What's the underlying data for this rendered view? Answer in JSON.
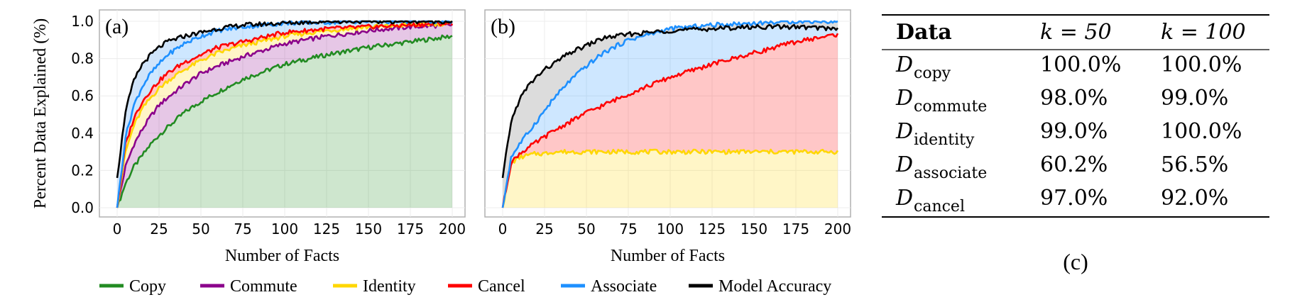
{
  "chart_data": [
    {
      "id": "a",
      "type": "line",
      "panel_label": "(a)",
      "xlabel": "Number of Facts",
      "ylabel": "Percent Data Explained (%)",
      "xlim": [
        0,
        200
      ],
      "ylim": [
        0,
        1.0
      ],
      "xticks": [
        "0",
        "25",
        "50",
        "75",
        "100",
        "125",
        "150",
        "175",
        "200"
      ],
      "yticks": [
        "0.0",
        "0.2",
        "0.4",
        "0.6",
        "0.8",
        "1.0"
      ],
      "grid": true,
      "fill_between_series": true,
      "x": [
        0,
        5,
        10,
        15,
        20,
        25,
        30,
        40,
        50,
        60,
        75,
        100,
        125,
        150,
        175,
        200
      ],
      "series": [
        {
          "name": "Copy",
          "color": "#228B22",
          "values": [
            0.0,
            0.13,
            0.22,
            0.28,
            0.34,
            0.39,
            0.43,
            0.51,
            0.57,
            0.62,
            0.69,
            0.77,
            0.82,
            0.86,
            0.89,
            0.92
          ]
        },
        {
          "name": "Commute",
          "color": "#8B008B",
          "values": [
            0.0,
            0.22,
            0.34,
            0.42,
            0.49,
            0.55,
            0.59,
            0.66,
            0.72,
            0.76,
            0.81,
            0.88,
            0.92,
            0.95,
            0.97,
            0.98
          ]
        },
        {
          "name": "Identity",
          "color": "#FFD700",
          "values": [
            0.0,
            0.3,
            0.44,
            0.53,
            0.59,
            0.64,
            0.68,
            0.74,
            0.79,
            0.83,
            0.87,
            0.92,
            0.95,
            0.97,
            0.98,
            0.99
          ]
        },
        {
          "name": "Cancel",
          "color": "#FF0000",
          "values": [
            0.0,
            0.34,
            0.48,
            0.57,
            0.63,
            0.68,
            0.72,
            0.78,
            0.82,
            0.86,
            0.89,
            0.94,
            0.96,
            0.97,
            0.98,
            0.99
          ]
        },
        {
          "name": "Associate",
          "color": "#1E90FF",
          "values": [
            0.0,
            0.38,
            0.55,
            0.65,
            0.72,
            0.77,
            0.82,
            0.88,
            0.92,
            0.95,
            0.97,
            0.99,
            0.995,
            1.0,
            1.0,
            1.0
          ]
        },
        {
          "name": "Model Accuracy",
          "color": "#000000",
          "values": [
            0.16,
            0.52,
            0.68,
            0.77,
            0.82,
            0.86,
            0.89,
            0.92,
            0.94,
            0.96,
            0.98,
            0.99,
            1.0,
            1.0,
            1.0,
            1.0
          ]
        }
      ]
    },
    {
      "id": "b",
      "type": "line",
      "panel_label": "(b)",
      "xlabel": "Number of Facts",
      "ylabel": "",
      "xlim": [
        0,
        200
      ],
      "ylim": [
        0,
        1.0
      ],
      "xticks": [
        "0",
        "25",
        "50",
        "75",
        "100",
        "125",
        "150",
        "175",
        "200"
      ],
      "grid": true,
      "fill_between_series": true,
      "x": [
        0,
        5,
        10,
        15,
        20,
        25,
        30,
        40,
        50,
        60,
        75,
        100,
        125,
        150,
        175,
        200
      ],
      "series": [
        {
          "name": "Identity",
          "color": "#FFD700",
          "values": [
            0.0,
            0.24,
            0.27,
            0.28,
            0.29,
            0.29,
            0.3,
            0.3,
            0.3,
            0.3,
            0.3,
            0.3,
            0.3,
            0.3,
            0.3,
            0.3
          ]
        },
        {
          "name": "Cancel",
          "color": "#FF0000",
          "values": [
            0.0,
            0.24,
            0.29,
            0.32,
            0.35,
            0.38,
            0.41,
            0.46,
            0.51,
            0.55,
            0.61,
            0.7,
            0.77,
            0.83,
            0.89,
            0.93
          ]
        },
        {
          "name": "Associate",
          "color": "#1E90FF",
          "values": [
            0.0,
            0.27,
            0.34,
            0.4,
            0.46,
            0.52,
            0.58,
            0.68,
            0.76,
            0.83,
            0.9,
            0.96,
            0.98,
            0.99,
            1.0,
            1.0
          ]
        },
        {
          "name": "Model Accuracy",
          "color": "#000000",
          "values": [
            0.16,
            0.46,
            0.58,
            0.65,
            0.7,
            0.74,
            0.77,
            0.83,
            0.87,
            0.91,
            0.93,
            0.95,
            0.96,
            0.97,
            0.97,
            0.96
          ]
        }
      ]
    },
    {
      "id": "c",
      "type": "table",
      "caption": "(c)",
      "columns": [
        "Data",
        "k = 50",
        "k = 100"
      ],
      "rows": [
        {
          "name": "D",
          "sub": "copy",
          "values": [
            "100.0%",
            "100.0%"
          ]
        },
        {
          "name": "D",
          "sub": "commute",
          "values": [
            "98.0%",
            "99.0%"
          ]
        },
        {
          "name": "D",
          "sub": "identity",
          "values": [
            "99.0%",
            "100.0%"
          ]
        },
        {
          "name": "D",
          "sub": "associate",
          "values": [
            "60.2%",
            "56.5%"
          ]
        },
        {
          "name": "D",
          "sub": "cancel",
          "values": [
            "97.0%",
            "92.0%"
          ]
        }
      ]
    }
  ],
  "legend": {
    "placement": "bottom",
    "entries": [
      {
        "name": "Copy",
        "color": "#228B22"
      },
      {
        "name": "Commute",
        "color": "#8B008B"
      },
      {
        "name": "Identity",
        "color": "#FFD700"
      },
      {
        "name": "Cancel",
        "color": "#FF0000"
      },
      {
        "name": "Associate",
        "color": "#1E90FF"
      },
      {
        "name": "Model Accuracy",
        "color": "#000000"
      }
    ]
  },
  "colors": {
    "gap_fill_a_top": "#d0e4fa",
    "gap_fill_b_top": "#dcdcdc"
  }
}
